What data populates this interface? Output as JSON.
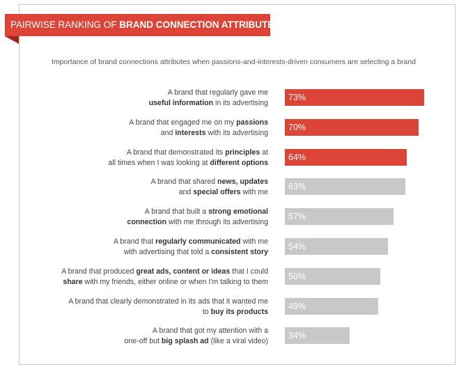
{
  "banner": {
    "prefix": "PAIRWISE RANKING OF ",
    "bold": "BRAND CONNECTION ATTRIBUTES"
  },
  "subtitle": "Importance of brand connections attributes when passions-and-interests-driven consumers are selecting a brand",
  "colors": {
    "highlight": "#db4437",
    "neutral": "#c8c8c8",
    "value_text": "#ffffff"
  },
  "chart_data": {
    "type": "bar",
    "orientation": "horizontal",
    "title": "",
    "xlabel": "",
    "ylabel": "",
    "xlim": [
      0,
      100
    ],
    "unit": "%",
    "grid": false,
    "categories": [
      "A brand that regularly gave me useful information in its advertising",
      "A brand that engaged me on my passions and interests with its advertising",
      "A brand that demonstrated its principles at all times when I was looking at different options",
      "A brand that shared news, updates and special offers with me",
      "A brand that built a strong emotional connection with me through its advertising",
      "A brand that regularly communicated with me with advertising that told a consistent story",
      "A brand that produced great ads, content or ideas that I could share with my friends, either online or when I'm talking to them",
      "A brand that clearly demonstrated in its ads that it wanted me to buy its products",
      "A brand that got my attention with a one-off but big splash ad (like a viral video)"
    ],
    "values": [
      73,
      70,
      64,
      63,
      57,
      54,
      50,
      49,
      34
    ],
    "value_labels": [
      "73%",
      "70%",
      "64%",
      "63%",
      "57%",
      "54%",
      "50%",
      "49%",
      "34%"
    ],
    "highlighted": [
      true,
      true,
      true,
      false,
      false,
      false,
      false,
      false,
      false
    ],
    "label_lines": [
      [
        [
          {
            "t": "A brand that regularly gave me",
            "b": false
          }
        ],
        [
          {
            "t": "useful information",
            "b": true
          },
          {
            "t": " in its advertising",
            "b": false
          }
        ]
      ],
      [
        [
          {
            "t": "A brand that engaged me on my ",
            "b": false
          },
          {
            "t": "passions",
            "b": true
          }
        ],
        [
          {
            "t": "and ",
            "b": false
          },
          {
            "t": "interests",
            "b": true
          },
          {
            "t": " with its advertising",
            "b": false
          }
        ]
      ],
      [
        [
          {
            "t": "A brand that demonstrated its ",
            "b": false
          },
          {
            "t": "principles",
            "b": true
          },
          {
            "t": " at",
            "b": false
          }
        ],
        [
          {
            "t": "all times when I was looking at ",
            "b": false
          },
          {
            "t": "different options",
            "b": true
          }
        ]
      ],
      [
        [
          {
            "t": "A brand that shared ",
            "b": false
          },
          {
            "t": "news, updates",
            "b": true
          }
        ],
        [
          {
            "t": "and ",
            "b": false
          },
          {
            "t": "special offers",
            "b": true
          },
          {
            "t": " with me",
            "b": false
          }
        ]
      ],
      [
        [
          {
            "t": "A brand that built a ",
            "b": false
          },
          {
            "t": "strong emotional",
            "b": true
          }
        ],
        [
          {
            "t": "connection",
            "b": true
          },
          {
            "t": " with me through its advertising",
            "b": false
          }
        ]
      ],
      [
        [
          {
            "t": "A brand that ",
            "b": false
          },
          {
            "t": "regularly communicated",
            "b": true
          },
          {
            "t": " with me",
            "b": false
          }
        ],
        [
          {
            "t": "with advertising that told a ",
            "b": false
          },
          {
            "t": "consistent story",
            "b": true
          }
        ]
      ],
      [
        [
          {
            "t": "A brand that produced ",
            "b": false
          },
          {
            "t": "great ads, content or ideas",
            "b": true
          },
          {
            "t": " that I could",
            "b": false
          }
        ],
        [
          {
            "t": "share",
            "b": true
          },
          {
            "t": " with my friends, either online or when I'm talking to them",
            "b": false
          }
        ]
      ],
      [
        [
          {
            "t": "A brand that clearly demonstrated in its ads that it wanted me",
            "b": false
          }
        ],
        [
          {
            "t": "to ",
            "b": false
          },
          {
            "t": "buy its products",
            "b": true
          }
        ]
      ],
      [
        [
          {
            "t": "A brand that got my attention with a",
            "b": false
          }
        ],
        [
          {
            "t": "one-off but ",
            "b": false
          },
          {
            "t": "big splash ad",
            "b": true
          },
          {
            "t": " (like a viral video)",
            "b": false
          }
        ]
      ]
    ]
  }
}
